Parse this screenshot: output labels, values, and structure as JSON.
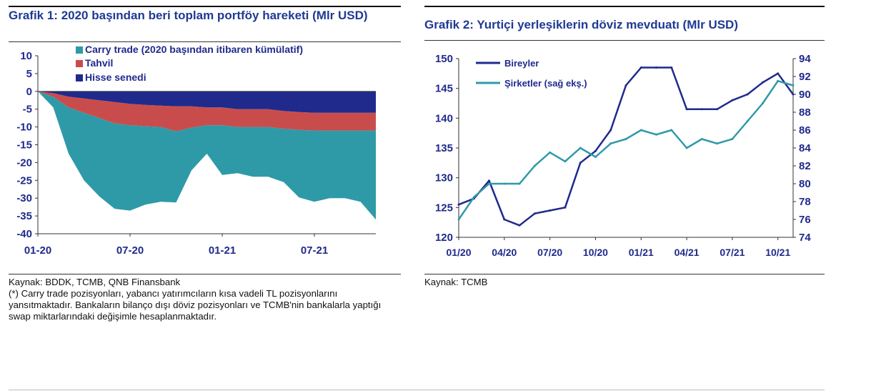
{
  "charts": {
    "left": {
      "title": "Grafik 1: 2020 başından beri toplam portföy hareketi (Mlr USD)",
      "source": "Kaynak: BDDK, TCMB, QNB Finansbank",
      "footnote": "(*) Carry trade pozisyonları, yabancı yatırımcıların kısa vadeli TL pozisyonlarını yansıtmaktadır. Bankaların bilanço dışı döviz pozisyonları ve TCMB'nin bankalarla yaptığı swap miktarlarındaki değişimle hesaplanmaktadır."
    },
    "right": {
      "title": "Grafik 2: Yurtiçi yerleşiklerin döviz mevduatı (Mlr USD)",
      "source": "Kaynak: TCMB"
    }
  },
  "chart_data": [
    {
      "type": "area",
      "title": "Grafik 1: 2020 başından beri toplam portföy hareketi (Mlr USD)",
      "ylim": [
        -40,
        10
      ],
      "yticks": [
        10,
        5,
        0,
        -5,
        -10,
        -15,
        -20,
        -25,
        -30,
        -35,
        -40
      ],
      "xticks": [
        "01-20",
        "07-20",
        "01-21",
        "07-21"
      ],
      "x": [
        "01-20",
        "02-20",
        "03-20",
        "04-20",
        "05-20",
        "06-20",
        "07-20",
        "08-20",
        "09-20",
        "10-20",
        "11-20",
        "12-20",
        "01-21",
        "02-21",
        "03-21",
        "04-21",
        "05-21",
        "06-21",
        "07-21",
        "08-21",
        "09-21",
        "10-21",
        "11-21"
      ],
      "legend_position": "top",
      "series": [
        {
          "name": "Carry trade (2020 başından itibaren kümülatif)",
          "color": "#2e9aa8",
          "values": [
            0,
            -3,
            -13,
            -19,
            -22,
            -24,
            -24,
            -22,
            -21,
            -20,
            -12,
            -8,
            -14,
            -13,
            -14,
            -14,
            -15,
            -19,
            -20,
            -19,
            -19,
            -20,
            -25
          ]
        },
        {
          "name": "Tahvil",
          "color": "#c94c4c",
          "values": [
            0,
            -1,
            -3,
            -4,
            -5,
            -6,
            -6,
            -6,
            -6,
            -7,
            -6,
            -5,
            -5,
            -5,
            -5,
            -5,
            -5,
            -5,
            -5,
            -5,
            -5,
            -5,
            -5
          ]
        },
        {
          "name": "Hisse senedi",
          "color": "#1f2a8c",
          "values": [
            0,
            -0.5,
            -1.5,
            -2,
            -2.5,
            -3,
            -3.5,
            -3.8,
            -4,
            -4.2,
            -4.2,
            -4.5,
            -4.5,
            -5,
            -5,
            -5,
            -5.5,
            -5.8,
            -6,
            -6,
            -6,
            -6,
            -6
          ]
        }
      ]
    },
    {
      "type": "line",
      "title": "Grafik 2: Yurtiçi yerleşiklerin döviz mevduatı (Mlr USD)",
      "xticks": [
        "01/20",
        "04/20",
        "07/20",
        "10/20",
        "01/21",
        "04/21",
        "07/21",
        "10/21"
      ],
      "x": [
        "01/20",
        "02/20",
        "03/20",
        "04/20",
        "05/20",
        "06/20",
        "07/20",
        "08/20",
        "09/20",
        "10/20",
        "11/20",
        "12/20",
        "01/21",
        "02/21",
        "03/21",
        "04/21",
        "05/21",
        "06/21",
        "07/21",
        "08/21",
        "09/21",
        "10/21",
        "11/21"
      ],
      "ylim_left": [
        120,
        150
      ],
      "yticks_left": [
        150,
        145,
        140,
        135,
        130,
        125,
        120
      ],
      "ylim_right": [
        74,
        94
      ],
      "yticks_right": [
        94,
        92,
        90,
        88,
        86,
        84,
        82,
        80,
        78,
        76,
        74
      ],
      "legend_position": "top-left",
      "series": [
        {
          "name": "Bireyler",
          "axis": "left",
          "color": "#1f2a8c",
          "values": [
            125.5,
            126.5,
            129.5,
            123,
            122,
            124,
            124.5,
            125,
            132.5,
            134.5,
            138,
            145.5,
            148.5,
            148.5,
            148.5,
            141.5,
            141.5,
            141.5,
            143,
            144,
            146,
            147.5,
            144
          ]
        },
        {
          "name": "Şirketler (sağ ekş.)",
          "axis": "right",
          "color": "#2e9aa8",
          "values": [
            76,
            78.5,
            80,
            80,
            80,
            82,
            83.5,
            82.5,
            84,
            83,
            84.5,
            85,
            86,
            85.5,
            86,
            84,
            85,
            84.5,
            85,
            87,
            89,
            91.5,
            91
          ]
        }
      ]
    }
  ]
}
